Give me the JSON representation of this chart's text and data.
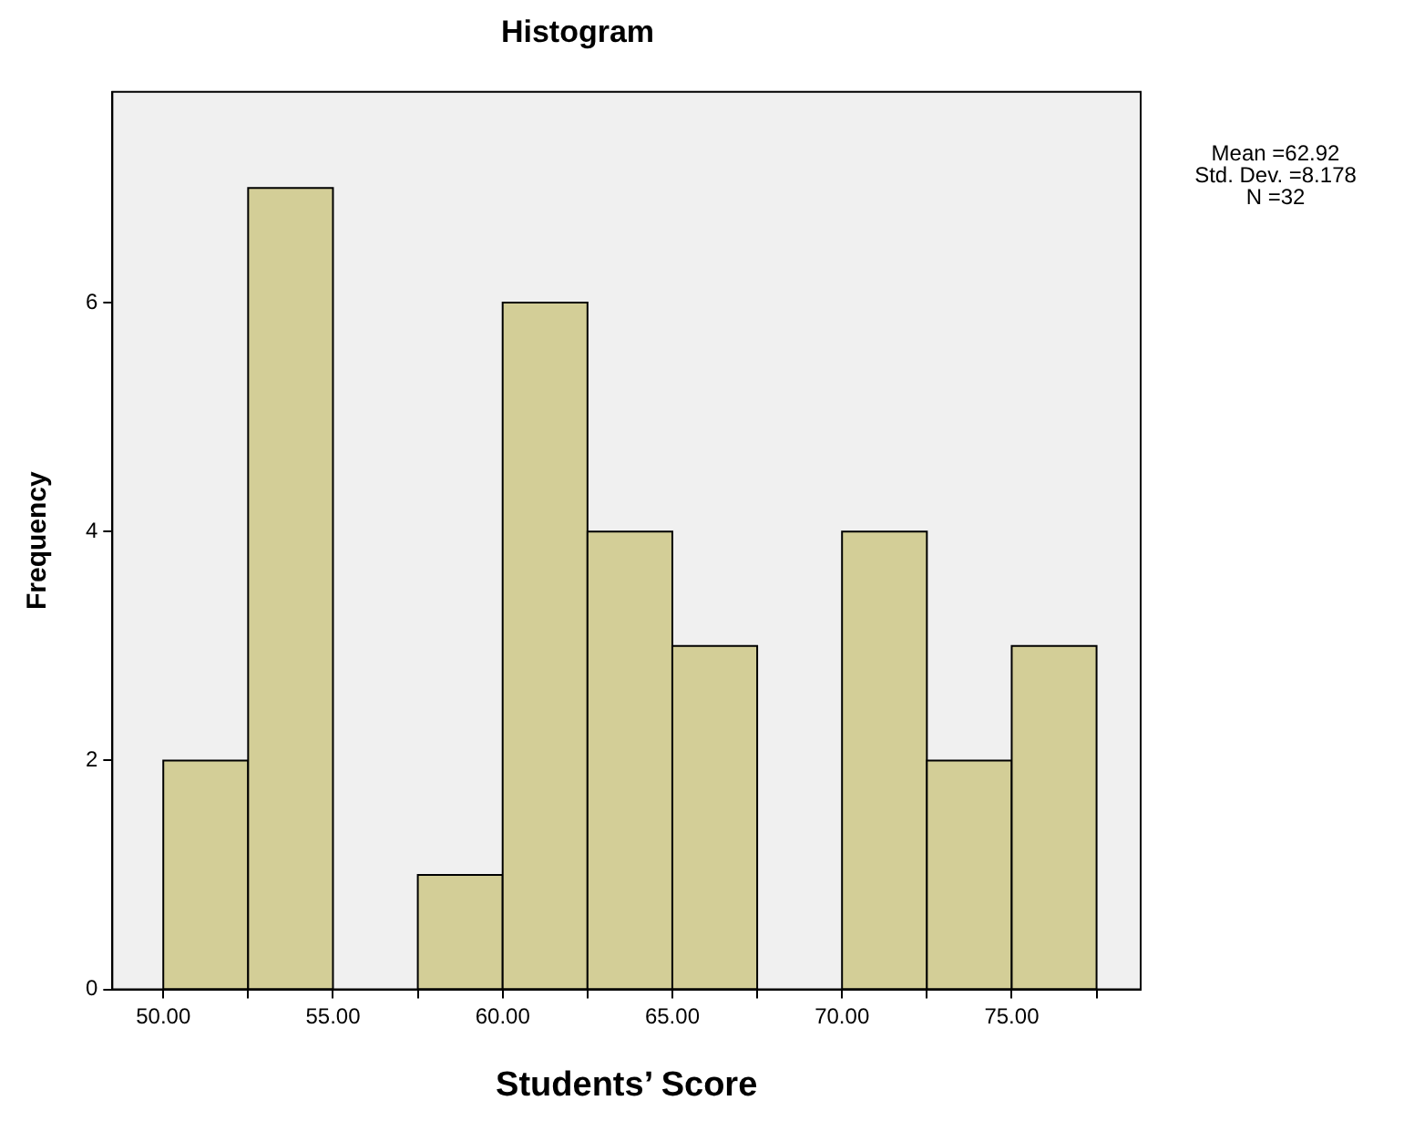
{
  "chart_data": {
    "type": "histogram",
    "title": "Histogram",
    "xlabel": "Students’ Score",
    "ylabel": "Frequency",
    "bins": [
      50,
      52.5,
      55,
      57.5,
      60,
      62.5,
      65,
      67.5,
      70,
      72.5,
      75,
      77.5
    ],
    "values": [
      2,
      7,
      0,
      1,
      6,
      4,
      3,
      0,
      4,
      2,
      3
    ],
    "color": "#d3ce97",
    "xlim": [
      48.5,
      78.8
    ],
    "xticks": [
      {
        "value": 50,
        "label": "50.00"
      },
      {
        "value": 52.5,
        "label": null
      },
      {
        "value": 55,
        "label": "55.00"
      },
      {
        "value": 57.5,
        "label": null
      },
      {
        "value": 60,
        "label": "60.00"
      },
      {
        "value": 62.5,
        "label": null
      },
      {
        "value": 65,
        "label": "65.00"
      },
      {
        "value": 67.5,
        "label": null
      },
      {
        "value": 70,
        "label": "70.00"
      },
      {
        "value": 72.5,
        "label": null
      },
      {
        "value": 75,
        "label": "75.00"
      },
      {
        "value": 77.5,
        "label": null
      }
    ],
    "ylim": [
      0,
      7.84
    ],
    "yticks": [
      0,
      2,
      4,
      6
    ],
    "legend": false,
    "annotations": [
      "Mean =62.92",
      "Std. Dev. =8.178",
      "N =32"
    ]
  }
}
